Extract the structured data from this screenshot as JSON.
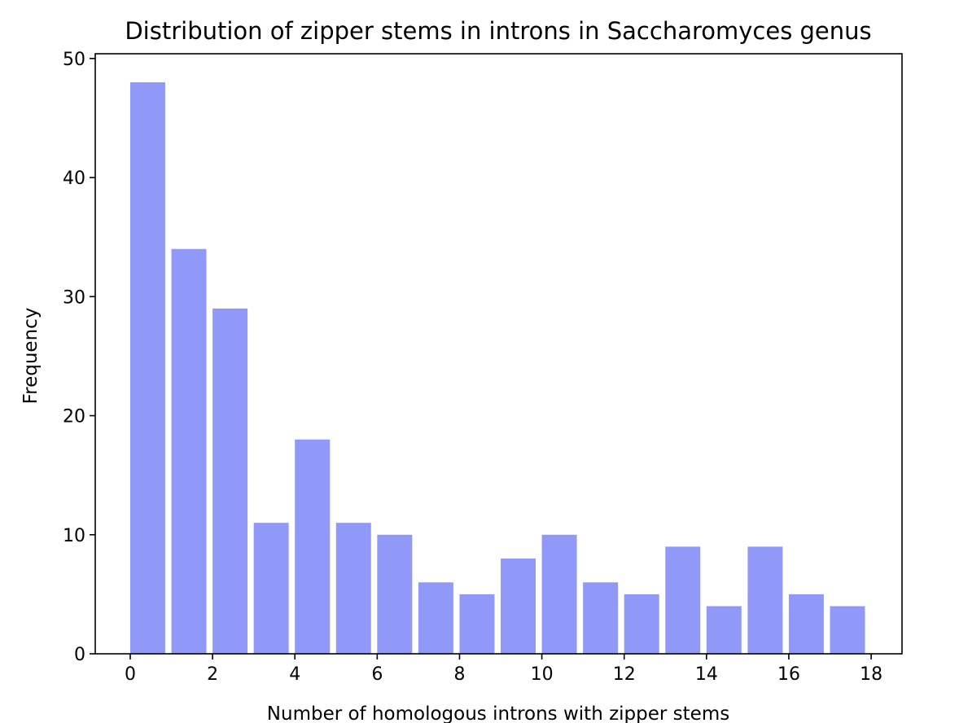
{
  "chart_data": {
    "type": "bar",
    "title": "Distribution of zipper stems in introns in Saccharomyces genus",
    "xlabel": "Number of homologous introns with zipper stems",
    "ylabel": "Frequency",
    "bar_color": "#9099f8",
    "xlim": [
      -0.85,
      18.75
    ],
    "ylim": [
      0,
      50.4
    ],
    "xticks": [
      0,
      2,
      4,
      6,
      8,
      10,
      12,
      14,
      16,
      18
    ],
    "yticks": [
      0,
      10,
      20,
      30,
      40,
      50
    ],
    "bin_width": 1,
    "bar_width": 0.85,
    "bins": [
      {
        "start": 0,
        "value": 48
      },
      {
        "start": 1,
        "value": 34
      },
      {
        "start": 2,
        "value": 29
      },
      {
        "start": 3,
        "value": 11
      },
      {
        "start": 4,
        "value": 18
      },
      {
        "start": 5,
        "value": 11
      },
      {
        "start": 6,
        "value": 10
      },
      {
        "start": 7,
        "value": 6
      },
      {
        "start": 8,
        "value": 5
      },
      {
        "start": 9,
        "value": 8
      },
      {
        "start": 10,
        "value": 10
      },
      {
        "start": 11,
        "value": 6
      },
      {
        "start": 12,
        "value": 5
      },
      {
        "start": 13,
        "value": 9
      },
      {
        "start": 14,
        "value": 4
      },
      {
        "start": 15,
        "value": 9
      },
      {
        "start": 16,
        "value": 5
      },
      {
        "start": 17,
        "value": 4
      }
    ],
    "grid": false,
    "legend": "none"
  }
}
